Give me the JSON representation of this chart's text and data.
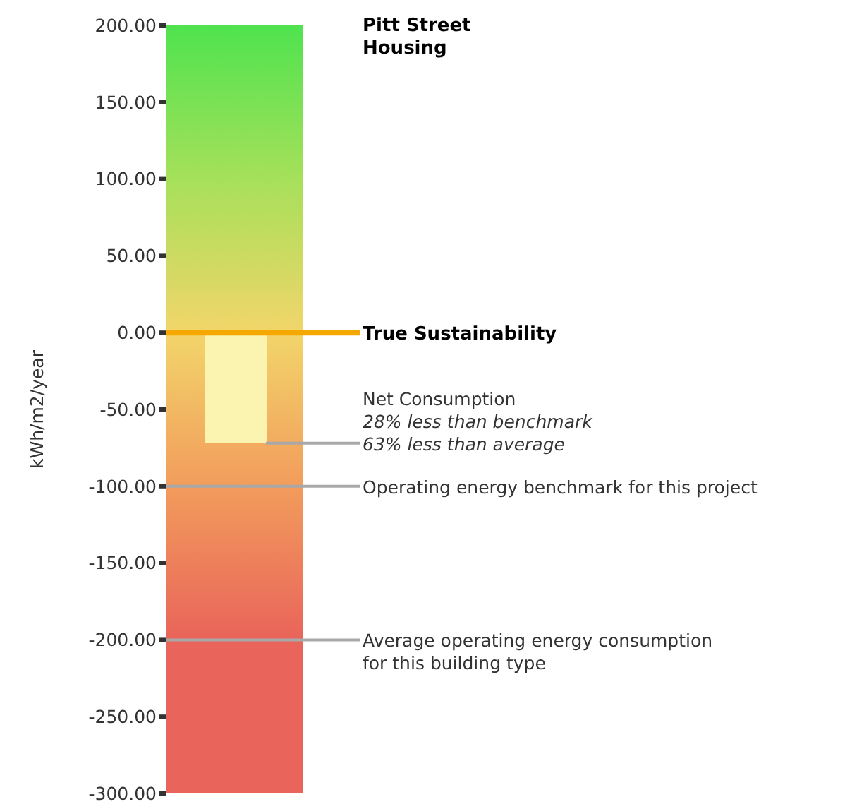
{
  "chart_data": {
    "type": "bar",
    "title": "Pitt Street Housing",
    "ylabel": "kWh/m2/year",
    "categories": [
      null
    ],
    "values": [
      -72
    ],
    "color": "#fbf3b0",
    "ylim": [
      -300,
      200
    ],
    "yticks": [
      {
        "value": 200,
        "label": "200.00"
      },
      {
        "value": 150,
        "label": "150.00"
      },
      {
        "value": 100,
        "label": "100.00"
      },
      {
        "value": 50,
        "label": "50.00"
      },
      {
        "value": 0,
        "label": "0.00"
      },
      {
        "value": -50,
        "label": "-50.00"
      },
      {
        "value": -100,
        "label": "-100.00"
      },
      {
        "value": -150,
        "label": "-150.00"
      },
      {
        "value": -200,
        "label": "-200.00"
      },
      {
        "value": -250,
        "label": "-250.00"
      },
      {
        "value": -300,
        "label": "-300.00"
      }
    ],
    "bands": [
      {
        "axis": "y",
        "from": 200,
        "to": 100,
        "color": "#4fe34f"
      },
      {
        "axis": "y",
        "from": 100,
        "to": 0,
        "color": "#a6e05a"
      },
      {
        "axis": "y",
        "from": 0,
        "to": -100,
        "color": "#f2d56a"
      },
      {
        "axis": "y",
        "from": -100,
        "to": -200,
        "color": "#f29c5c"
      },
      {
        "axis": "y",
        "from": -200,
        "to": -300,
        "color": "#e9645a"
      }
    ],
    "ref_lines": [
      {
        "axis": "y",
        "value": 0,
        "label": "True Sustainability",
        "color": "#f5a800"
      },
      {
        "axis": "y",
        "value": -100,
        "label": "Operating energy benchmark for this project",
        "color": "#a8a8a8"
      },
      {
        "axis": "y",
        "value": -200,
        "label": "Average operating energy consumption for this building type",
        "color": "#a8a8a8"
      }
    ],
    "annotations": [
      "Net Consumption",
      "28% less than benchmark",
      "63% less than average"
    ],
    "grid": false,
    "legend": false
  }
}
